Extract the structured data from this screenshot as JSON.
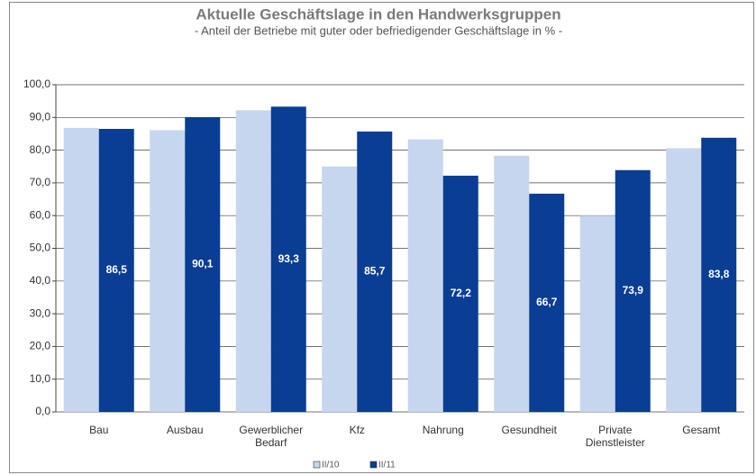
{
  "chart_data": {
    "type": "bar",
    "title": "Aktuelle Geschäftslage in den Handwerksgruppen",
    "subtitle": "- Anteil der Betriebe mit guter oder befriedigender Geschäftslage in % -",
    "categories": [
      "Bau",
      "Ausbau",
      "Gewerblicher Bedarf",
      "Kfz",
      "Nahrung",
      "Gesundheit",
      "Private Dienstleister",
      "Gesamt"
    ],
    "series": [
      {
        "name": "II/10",
        "color": "#c6d6ef",
        "values": [
          86.8,
          86.1,
          92.2,
          75.0,
          83.3,
          78.3,
          60.0,
          80.6
        ]
      },
      {
        "name": "II/11",
        "color": "#0a3d94",
        "values": [
          86.5,
          90.1,
          93.3,
          85.7,
          72.2,
          66.7,
          73.9,
          83.8
        ],
        "value_labels": [
          "86,5",
          "90,1",
          "93,3",
          "85,7",
          "72,2",
          "66,7",
          "73,9",
          "83,8"
        ]
      }
    ],
    "ylim": [
      0,
      100
    ],
    "yticks": [
      {
        "value": 0,
        "label": "0,0"
      },
      {
        "value": 10,
        "label": "10,0"
      },
      {
        "value": 20,
        "label": "20,0"
      },
      {
        "value": 30,
        "label": "30,0"
      },
      {
        "value": 40,
        "label": "40,0"
      },
      {
        "value": 50,
        "label": "50,0"
      },
      {
        "value": 60,
        "label": "60,0"
      },
      {
        "value": 70,
        "label": "70,0"
      },
      {
        "value": 80,
        "label": "80,0"
      },
      {
        "value": 90,
        "label": "90,0"
      },
      {
        "value": 100,
        "label": "100,0"
      }
    ],
    "grid": true,
    "legend": "bottom"
  }
}
